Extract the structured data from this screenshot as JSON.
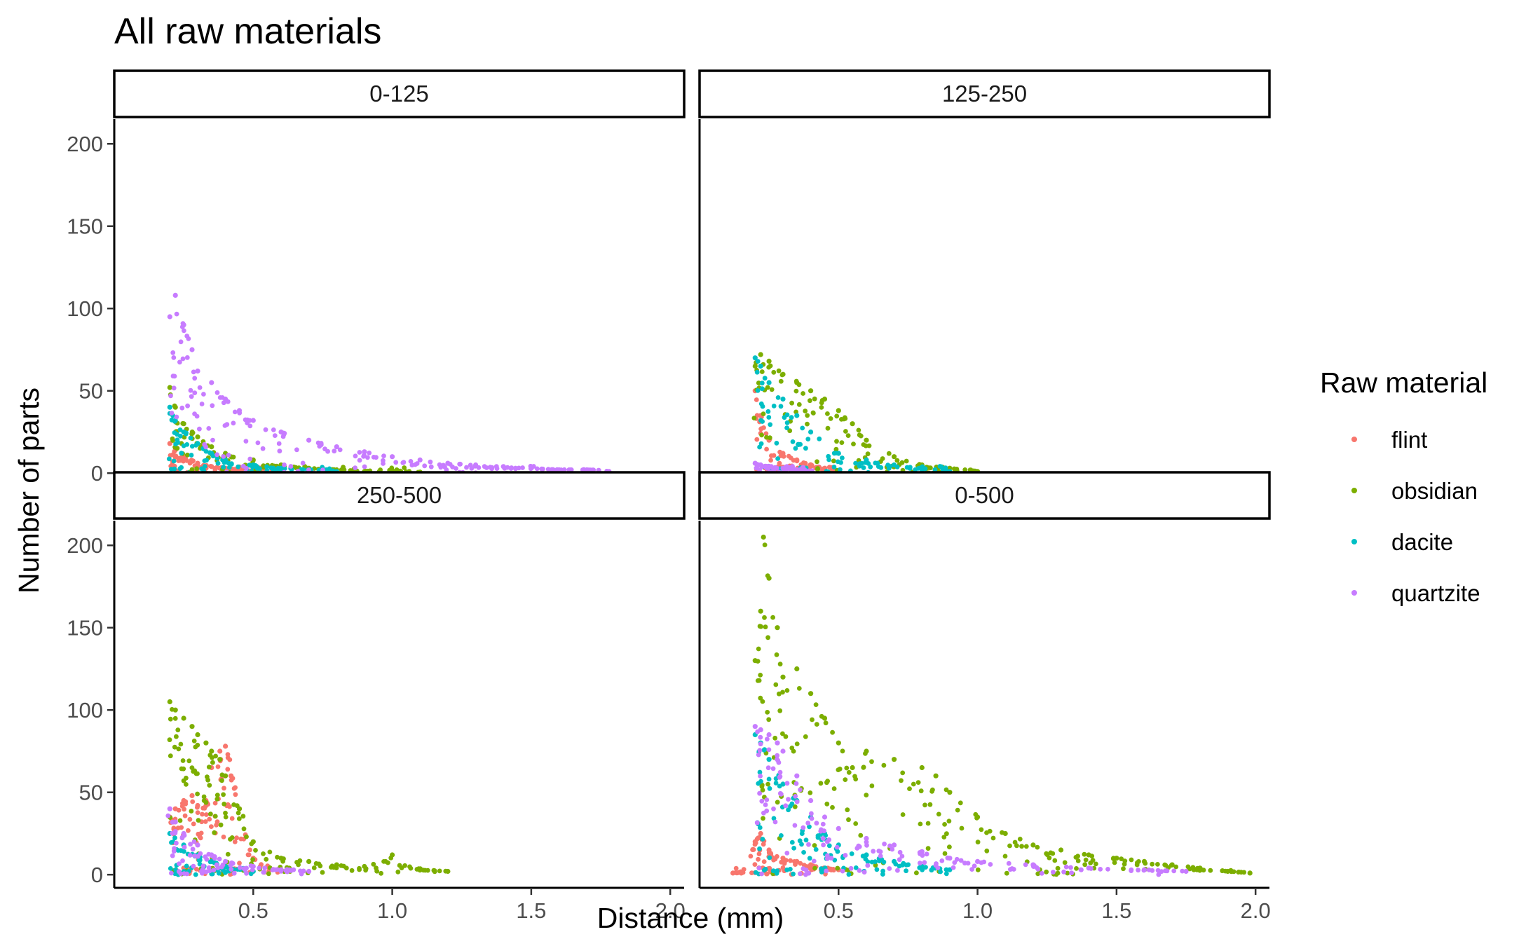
{
  "chart_data": {
    "type": "scatter",
    "title": "All raw materials",
    "xlabel": "Distance (mm)",
    "ylabel": "Number of parts",
    "xlim": [
      0.0,
      2.05
    ],
    "ylim": [
      -8,
      215
    ],
    "x_ticks": [
      "0.5",
      "1.0",
      "1.5",
      "2.0"
    ],
    "y_ticks": [
      "0",
      "50",
      "100",
      "150",
      "200"
    ],
    "grid": false,
    "legend": {
      "title": "Raw material",
      "placement": "right",
      "entries": [
        {
          "name": "flint",
          "color": "#F8766D"
        },
        {
          "name": "obsidian",
          "color": "#7CAE00"
        },
        {
          "name": "dacite",
          "color": "#00BFC4"
        },
        {
          "name": "quartzite",
          "color": "#C77CFF"
        }
      ]
    },
    "facets": [
      {
        "label": "0-125",
        "series": [
          {
            "name": "flint",
            "x": [
              0.2,
              0.22,
              0.25,
              0.3,
              0.35,
              0.4,
              0.45,
              0.5,
              0.55,
              0.6
            ],
            "y": [
              18,
              14,
              10,
              6,
              4,
              3,
              2,
              1,
              1,
              0
            ]
          },
          {
            "name": "obsidian",
            "x": [
              0.2,
              0.22,
              0.25,
              0.3,
              0.35,
              0.4,
              0.5,
              0.6,
              0.7,
              0.8,
              0.9,
              1.0,
              1.1
            ],
            "y": [
              52,
              40,
              30,
              22,
              16,
              12,
              8,
              5,
              3,
              2,
              1,
              1,
              0
            ]
          },
          {
            "name": "dacite",
            "x": [
              0.2,
              0.22,
              0.25,
              0.3,
              0.35,
              0.4,
              0.5,
              0.6,
              0.7,
              0.8
            ],
            "y": [
              40,
              32,
              25,
              18,
              12,
              8,
              5,
              3,
              2,
              1
            ]
          },
          {
            "name": "quartzite",
            "x": [
              0.2,
              0.22,
              0.25,
              0.28,
              0.3,
              0.35,
              0.4,
              0.45,
              0.5,
              0.6,
              0.7,
              0.8,
              0.9,
              1.0,
              1.1,
              1.2,
              1.3,
              1.4,
              1.5,
              1.6,
              1.7,
              1.78
            ],
            "y": [
              95,
              108,
              90,
              75,
              62,
              55,
              45,
              38,
              32,
              25,
              20,
              16,
              13,
              10,
              8,
              6,
              5,
              4,
              3,
              2,
              2,
              1
            ]
          }
        ]
      },
      {
        "label": "125-250",
        "series": [
          {
            "name": "flint",
            "x": [
              0.2,
              0.22,
              0.25,
              0.3,
              0.35,
              0.4,
              0.45,
              0.5
            ],
            "y": [
              50,
              35,
              20,
              12,
              8,
              5,
              3,
              1
            ]
          },
          {
            "name": "obsidian",
            "x": [
              0.2,
              0.22,
              0.25,
              0.3,
              0.35,
              0.4,
              0.45,
              0.5,
              0.55,
              0.6,
              0.7,
              0.8,
              0.9,
              1.0
            ],
            "y": [
              65,
              72,
              68,
              60,
              55,
              50,
              45,
              38,
              30,
              20,
              10,
              5,
              3,
              1
            ]
          },
          {
            "name": "dacite",
            "x": [
              0.2,
              0.22,
              0.25,
              0.3,
              0.35,
              0.4,
              0.5,
              0.6,
              0.7,
              0.8,
              0.9
            ],
            "y": [
              70,
              65,
              55,
              45,
              35,
              25,
              12,
              8,
              5,
              3,
              1
            ]
          },
          {
            "name": "quartzite",
            "x": [
              0.2,
              0.22,
              0.25,
              0.3,
              0.35,
              0.4
            ],
            "y": [
              6,
              5,
              4,
              3,
              2,
              1
            ]
          }
        ]
      },
      {
        "label": "250-500",
        "series": [
          {
            "name": "flint",
            "x": [
              0.2,
              0.22,
              0.25,
              0.28,
              0.3,
              0.33,
              0.35,
              0.38,
              0.4,
              0.42,
              0.45,
              0.5,
              0.6
            ],
            "y": [
              35,
              40,
              45,
              48,
              42,
              45,
              65,
              75,
              78,
              60,
              40,
              10,
              3
            ]
          },
          {
            "name": "obsidian",
            "x": [
              0.2,
              0.22,
              0.25,
              0.28,
              0.3,
              0.33,
              0.35,
              0.38,
              0.4,
              0.45,
              0.5,
              0.6,
              0.7,
              0.8,
              0.9,
              1.0,
              1.1,
              1.2
            ],
            "y": [
              105,
              100,
              95,
              90,
              85,
              80,
              75,
              70,
              60,
              40,
              20,
              10,
              8,
              6,
              5,
              12,
              3,
              2
            ]
          },
          {
            "name": "dacite",
            "x": [
              0.2,
              0.25,
              0.3,
              0.35,
              0.4,
              0.5
            ],
            "y": [
              25,
              18,
              12,
              8,
              5,
              2
            ]
          },
          {
            "name": "quartzite",
            "x": [
              0.2,
              0.22,
              0.25,
              0.3,
              0.35,
              0.4,
              0.5,
              0.6,
              0.7
            ],
            "y": [
              40,
              32,
              25,
              18,
              12,
              8,
              5,
              3,
              2
            ]
          }
        ]
      },
      {
        "label": "0-500",
        "series": [
          {
            "name": "flint",
            "x": [
              0.12,
              0.15,
              0.2,
              0.22,
              0.25,
              0.3,
              0.35,
              0.4,
              0.45,
              0.5
            ],
            "y": [
              1,
              1,
              20,
              25,
              15,
              10,
              8,
              6,
              4,
              3
            ]
          },
          {
            "name": "obsidian",
            "x": [
              0.2,
              0.22,
              0.23,
              0.25,
              0.28,
              0.3,
              0.35,
              0.4,
              0.45,
              0.5,
              0.55,
              0.6,
              0.7,
              0.8,
              0.85,
              0.9,
              1.0,
              1.1,
              1.2,
              1.3,
              1.4,
              1.5,
              1.6,
              1.7,
              1.8,
              1.9,
              1.98
            ],
            "y": [
              130,
              160,
              205,
              180,
              150,
              120,
              125,
              110,
              95,
              80,
              65,
              75,
              70,
              65,
              60,
              50,
              35,
              25,
              18,
              15,
              12,
              10,
              8,
              6,
              4,
              2,
              1
            ]
          },
          {
            "name": "dacite",
            "x": [
              0.2,
              0.22,
              0.25,
              0.3,
              0.35,
              0.4,
              0.45,
              0.5,
              0.6,
              0.7,
              0.8,
              0.9
            ],
            "y": [
              85,
              80,
              70,
              55,
              45,
              35,
              25,
              18,
              12,
              8,
              5,
              3
            ]
          },
          {
            "name": "quartzite",
            "x": [
              0.2,
              0.22,
              0.25,
              0.28,
              0.3,
              0.35,
              0.4,
              0.45,
              0.5,
              0.6,
              0.7,
              0.8,
              0.9,
              1.0,
              1.2,
              1.4,
              1.6,
              1.75
            ],
            "y": [
              90,
              88,
              85,
              80,
              75,
              60,
              45,
              35,
              28,
              22,
              18,
              14,
              10,
              8,
              6,
              4,
              3,
              2
            ]
          }
        ]
      }
    ]
  }
}
